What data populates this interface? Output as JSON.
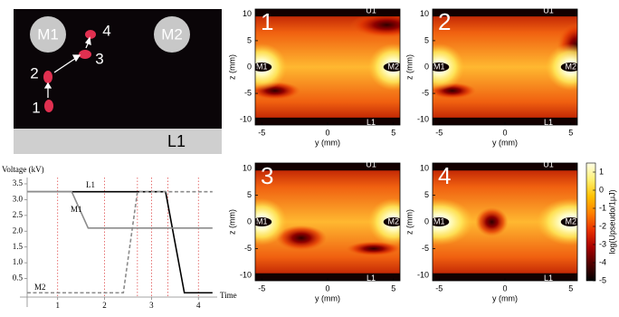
{
  "photo": {
    "labels": [
      "M1",
      "M2",
      "L1"
    ],
    "points": [
      "1",
      "2",
      "3",
      "4"
    ]
  },
  "chart_data": [
    {
      "type": "line",
      "ylabel": "Voltage (kV)",
      "xlabel": "Time",
      "xlim": [
        0.35,
        4.4
      ],
      "ylim": [
        0,
        3.7
      ],
      "xticks": [
        1,
        2,
        3,
        4
      ],
      "yticks": [
        {
          "value": 0.5,
          "label": "0.5"
        },
        {
          "value": 1.0,
          "label": "1.0"
        },
        1.5,
        {
          "value": 2.0,
          "label": "2.0"
        },
        2.5,
        {
          "value": 3.0,
          "label": "3.0"
        },
        3.5
      ],
      "vlines": [
        1,
        2,
        2.7,
        3,
        3.35,
        4
      ],
      "vline_color": "#e05050",
      "series": [
        {
          "name": "L1",
          "color": "#000000",
          "dash": false,
          "x": [
            0.35,
            3.3,
            3.7,
            4.3
          ],
          "values": [
            3.25,
            3.25,
            0.05,
            0.05
          ]
        },
        {
          "name": "M1",
          "color": "#8c8c8c",
          "dash": false,
          "x": [
            0.35,
            1.3,
            1.65,
            4.3
          ],
          "values": [
            3.25,
            3.25,
            2.1,
            2.1
          ]
        },
        {
          "name": "M2",
          "color": "#8c8c8c",
          "dash": true,
          "x": [
            0.35,
            2.4,
            2.7,
            4.3
          ],
          "values": [
            0.05,
            0.05,
            3.25,
            3.25
          ]
        }
      ]
    },
    {
      "type": "contour",
      "title": "1",
      "xlabel": "y (mm)",
      "ylabel": "z (mm)",
      "xlim": [
        -5.5,
        5.5
      ],
      "ylim": [
        -11,
        11
      ],
      "xticks": [
        -5,
        0,
        5
      ],
      "yticks": [
        -10,
        -5,
        0,
        5,
        10
      ],
      "annotations": [
        "M1",
        "M2",
        "U1",
        "L1"
      ]
    },
    {
      "type": "contour",
      "title": "2",
      "xlabel": "y (mm)",
      "ylabel": "z (mm)",
      "xlim": [
        -5.5,
        5.5
      ],
      "ylim": [
        -11,
        11
      ],
      "xticks": [
        -5,
        0,
        5
      ],
      "yticks": [
        -10,
        -5,
        0,
        5,
        10
      ],
      "annotations": [
        "M1",
        "M2",
        "U1",
        "L1"
      ]
    },
    {
      "type": "contour",
      "title": "3",
      "xlabel": "y (mm)",
      "ylabel": "z (mm)",
      "xlim": [
        -5.5,
        5.5
      ],
      "ylim": [
        -11,
        11
      ],
      "xticks": [
        -5,
        0,
        5
      ],
      "yticks": [
        -10,
        -5,
        0,
        5,
        10
      ],
      "annotations": [
        "M1",
        "M2",
        "U1",
        "L1"
      ]
    },
    {
      "type": "contour",
      "title": "4",
      "xlabel": "y (mm)",
      "ylabel": "z (mm)",
      "xlim": [
        -5.5,
        5.5
      ],
      "ylim": [
        -11,
        11
      ],
      "xticks": [
        -5,
        0,
        5
      ],
      "yticks": [
        -10,
        -5,
        0,
        5,
        10
      ],
      "annotations": [
        "M1",
        "M2",
        "U1",
        "L1"
      ]
    },
    {
      "type": "colorbar",
      "label": "log(Upseudo/1μJ)",
      "ylim": [
        -5,
        1.5
      ],
      "yticks": [
        1,
        0,
        -1,
        -2,
        -3,
        -4,
        -5
      ],
      "colors": [
        "#ffffe8",
        "#fff070",
        "#ffc000",
        "#ff8000",
        "#e83000",
        "#a80000",
        "#500000",
        "#000000"
      ]
    }
  ]
}
